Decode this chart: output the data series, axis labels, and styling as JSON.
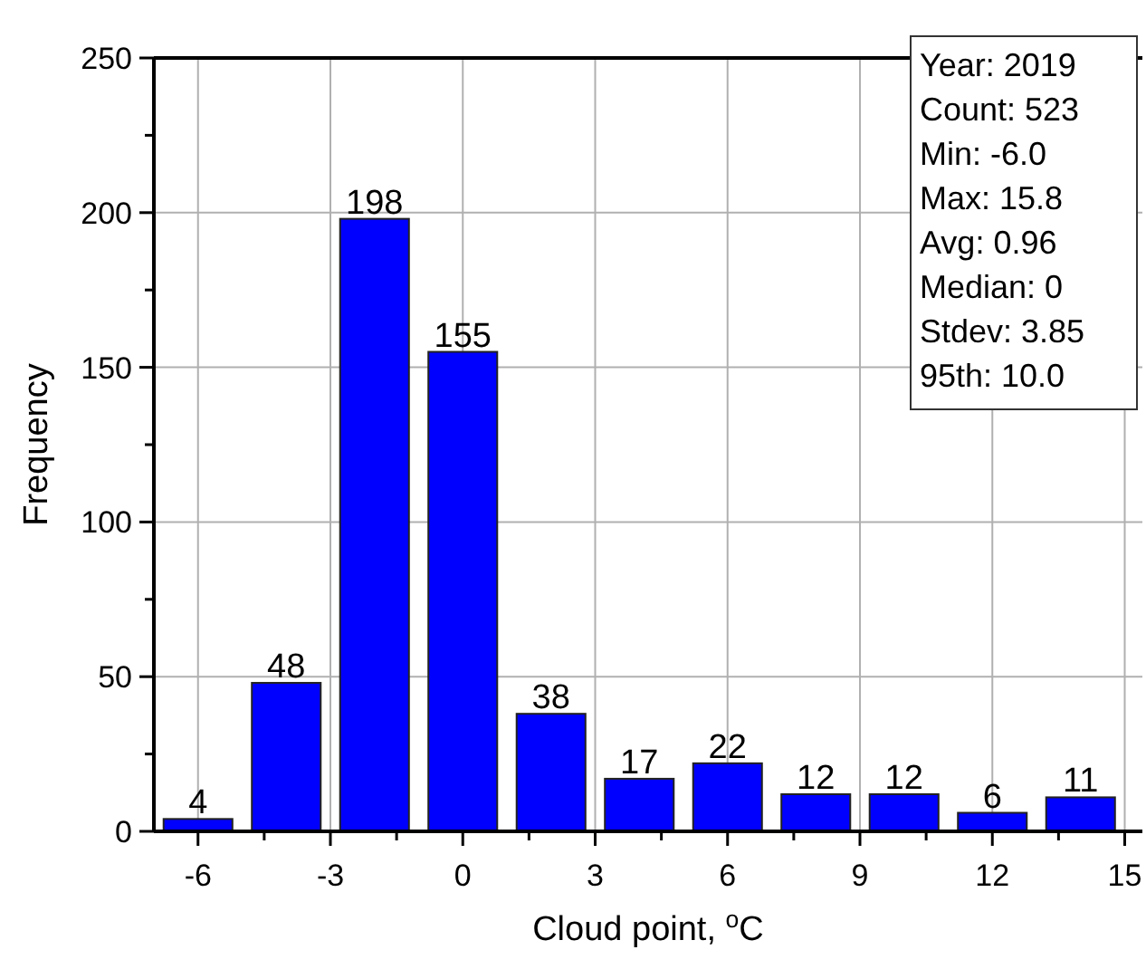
{
  "chart_data": {
    "type": "histogram",
    "xlabel": "Cloud point, $^{o}$C",
    "ylabel": "Frequency",
    "bins": [
      -7,
      -5,
      -3,
      -1,
      1,
      3,
      5,
      7,
      9,
      11,
      13,
      15
    ],
    "values": [
      4,
      48,
      198,
      155,
      38,
      17,
      22,
      12,
      12,
      6,
      11
    ],
    "color": "#0000ff",
    "data_labels": true,
    "grid": true,
    "xlim": [
      -7,
      15.4
    ],
    "xticks": [
      -6,
      -3,
      0,
      3,
      6,
      9,
      12,
      15
    ],
    "ylim": [
      0,
      250
    ],
    "yticks": [
      0,
      50,
      100,
      150,
      200,
      250
    ],
    "annotations": [
      "Year: 2019",
      "Count: 523",
      "Min: -6.0",
      "Max: 15.8",
      "Avg: 0.96",
      "Median: 0",
      "Stdev: 3.85",
      "95th: 10.0"
    ]
  }
}
